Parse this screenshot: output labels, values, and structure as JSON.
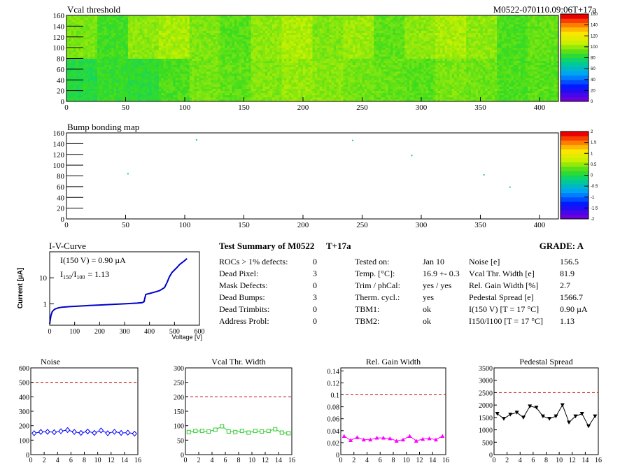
{
  "heatmap_title": "Vcal threshold",
  "module_label": "M0522-070110.09:06T+17a",
  "bump_title": "Bump bonding map",
  "iv_title": "I-V-Curve",
  "iv_annotation_1": "I(150 V) = 0.90 µA",
  "iv_annotation_2a": "I",
  "iv_annotation_2b": "150",
  "iv_annotation_2c": "/I",
  "iv_annotation_2d": "100",
  "iv_annotation_2e": "=  1.13",
  "summary": {
    "title": "Test Summary of M0522",
    "temp_tag": "T+17a",
    "grade": "GRADE:  A",
    "left_labels": [
      "ROCs > 1% defects:",
      "Dead Pixel:",
      "Mask Defects:",
      "Dead Bumps:",
      "Dead Trimbits:",
      "Address Probl:"
    ],
    "left_values": [
      "0",
      "3",
      "0",
      "3",
      "0",
      "0"
    ],
    "mid_labels": [
      "Tested on:",
      "Temp. [°C]:",
      "Trim / phCal:",
      "Therm. cycl.:",
      "TBM1:",
      "TBM2:"
    ],
    "mid_values": [
      "Jan 10",
      "16.9 +- 0.3",
      "yes / yes",
      "yes",
      "ok",
      "ok"
    ],
    "right_labels": [
      "Noise [e]",
      "Vcal Thr. Width [e]",
      "Rel. Gain Width [%]",
      "Pedestal Spread [e]",
      "I(150 V) [T = 17 °C]",
      "I150/I100  [T = 17 °C]"
    ],
    "right_values": [
      "156.5",
      "81.9",
      "2.7",
      "1566.7",
      "0.90 µA",
      "1.13"
    ]
  },
  "chart_data": [
    {
      "type": "heatmap",
      "title": "Vcal threshold",
      "x_ticks": [
        "0",
        "50",
        "100",
        "150",
        "200",
        "250",
        "300",
        "350",
        "400"
      ],
      "y_ticks": [
        "0",
        "20",
        "40",
        "60",
        "80",
        "100",
        "120",
        "140",
        "160"
      ],
      "xlim": [
        0,
        416
      ],
      "ylim": [
        0,
        160
      ],
      "colorbar_ticks": [
        "0",
        "20",
        "40",
        "60",
        "80",
        "100",
        "120",
        "140",
        "160"
      ],
      "roc_level_bottom": [
        82,
        86,
        84,
        90,
        96,
        93,
        98,
        101,
        99,
        96,
        94,
        92,
        97,
        95,
        90,
        92
      ],
      "roc_level_top": [
        97,
        88,
        100,
        104,
        97,
        92,
        100,
        105,
        98,
        102,
        93,
        100,
        104,
        100,
        90,
        94
      ]
    },
    {
      "type": "scatter",
      "title": "Bump bonding map",
      "x_ticks": [
        "0",
        "50",
        "100",
        "150",
        "200",
        "250",
        "300",
        "350",
        "400"
      ],
      "y_ticks": [
        "0",
        "20",
        "40",
        "60",
        "80",
        "100",
        "120",
        "140",
        "160"
      ],
      "xlim": [
        0,
        416
      ],
      "ylim": [
        0,
        160
      ],
      "colorbar_ticks": [
        "-2",
        "-1.5",
        "-1",
        "-0.5",
        "0",
        "0.5",
        "1",
        "1.5",
        "2"
      ],
      "points": [
        [
          110,
          147
        ],
        [
          242,
          146
        ],
        [
          52,
          84
        ],
        [
          292,
          118
        ],
        [
          353,
          82
        ],
        [
          375,
          59
        ]
      ]
    },
    {
      "type": "line",
      "title": "I-V-Curve",
      "xlabel": "Voltage [V]",
      "ylabel": "Current [µA]",
      "x_ticks": [
        "0",
        "100",
        "200",
        "300",
        "400",
        "500",
        "600"
      ],
      "y_ticks": [
        "1",
        "10"
      ],
      "xlim": [
        0,
        600
      ],
      "ylim": [
        0.15,
        100
      ],
      "yscale": "log",
      "x": [
        0,
        5,
        10,
        20,
        35,
        50,
        80,
        120,
        160,
        200,
        250,
        300,
        350,
        370,
        378,
        385,
        400,
        420,
        440,
        460,
        470,
        480,
        490,
        500,
        510,
        520,
        530,
        540,
        550
      ],
      "y": [
        0.17,
        0.35,
        0.5,
        0.62,
        0.7,
        0.74,
        0.78,
        0.82,
        0.86,
        0.9,
        0.95,
        1.0,
        1.06,
        1.1,
        1.2,
        2.3,
        2.5,
        2.8,
        3.2,
        4.2,
        6.5,
        11,
        16,
        20,
        25,
        32,
        38,
        45,
        55
      ]
    },
    {
      "type": "line",
      "title": "Noise",
      "x_ticks": [
        "0",
        "2",
        "4",
        "6",
        "8",
        "10",
        "12",
        "14",
        "16"
      ],
      "y_ticks": [
        "0",
        "100",
        "200",
        "300",
        "400",
        "500",
        "600"
      ],
      "xlim": [
        0,
        16
      ],
      "ylim": [
        0,
        600
      ],
      "cut": 500,
      "color": "#0000ff",
      "marker": "diamond",
      "x": [
        0.5,
        1.5,
        2.5,
        3.5,
        4.5,
        5.5,
        6.5,
        7.5,
        8.5,
        9.5,
        10.5,
        11.5,
        12.5,
        13.5,
        14.5,
        15.5
      ],
      "y": [
        148,
        157,
        158,
        155,
        162,
        170,
        157,
        150,
        160,
        150,
        167,
        148,
        158,
        150,
        152,
        145
      ]
    },
    {
      "type": "line",
      "title": "Vcal Thr. Width",
      "x_ticks": [
        "0",
        "2",
        "4",
        "6",
        "8",
        "10",
        "12",
        "14",
        "16"
      ],
      "y_ticks": [
        "0",
        "50",
        "100",
        "150",
        "200",
        "250",
        "300"
      ],
      "xlim": [
        0,
        16
      ],
      "ylim": [
        0,
        300
      ],
      "cut": 200,
      "color": "#33cc33",
      "marker": "square",
      "x": [
        0.5,
        1.5,
        2.5,
        3.5,
        4.5,
        5.5,
        6.5,
        7.5,
        8.5,
        9.5,
        10.5,
        11.5,
        12.5,
        13.5,
        14.5,
        15.5
      ],
      "y": [
        78,
        82,
        82,
        80,
        86,
        98,
        80,
        78,
        82,
        76,
        82,
        80,
        82,
        88,
        76,
        74
      ]
    },
    {
      "type": "line",
      "title": "Rel. Gain Width",
      "x_ticks": [
        "0",
        "2",
        "4",
        "6",
        "8",
        "10",
        "12",
        "14",
        "16"
      ],
      "y_ticks": [
        "0",
        "0.02",
        "0.04",
        "0.06",
        "0.08",
        "0.1",
        "0.12",
        "0.14"
      ],
      "xlim": [
        0,
        16
      ],
      "ylim": [
        0,
        0.145
      ],
      "cut": 0.1,
      "color": "#ff00ff",
      "marker": "triangle-up",
      "x": [
        0.5,
        1.5,
        2.5,
        3.5,
        4.5,
        5.5,
        6.5,
        7.5,
        8.5,
        9.5,
        10.5,
        11.5,
        12.5,
        13.5,
        14.5,
        15.5
      ],
      "y": [
        0.031,
        0.024,
        0.029,
        0.025,
        0.025,
        0.028,
        0.028,
        0.027,
        0.023,
        0.025,
        0.031,
        0.023,
        0.026,
        0.027,
        0.025,
        0.031
      ]
    },
    {
      "type": "line",
      "title": "Pedestal Spread",
      "x_ticks": [
        "0",
        "2",
        "4",
        "6",
        "8",
        "10",
        "12",
        "14",
        "16"
      ],
      "y_ticks": [
        "0",
        "500",
        "1000",
        "1500",
        "2000",
        "2500",
        "3000",
        "3500"
      ],
      "xlim": [
        0,
        16
      ],
      "ylim": [
        0,
        3500
      ],
      "cut": 2500,
      "color": "#000000",
      "marker": "triangle-down",
      "x": [
        0.5,
        1.5,
        2.5,
        3.5,
        4.5,
        5.5,
        6.5,
        7.5,
        8.5,
        9.5,
        10.5,
        11.5,
        12.5,
        13.5,
        14.5,
        15.5
      ],
      "y": [
        1650,
        1450,
        1620,
        1700,
        1500,
        1950,
        1900,
        1550,
        1450,
        1550,
        2000,
        1300,
        1550,
        1650,
        1150,
        1550
      ]
    }
  ]
}
